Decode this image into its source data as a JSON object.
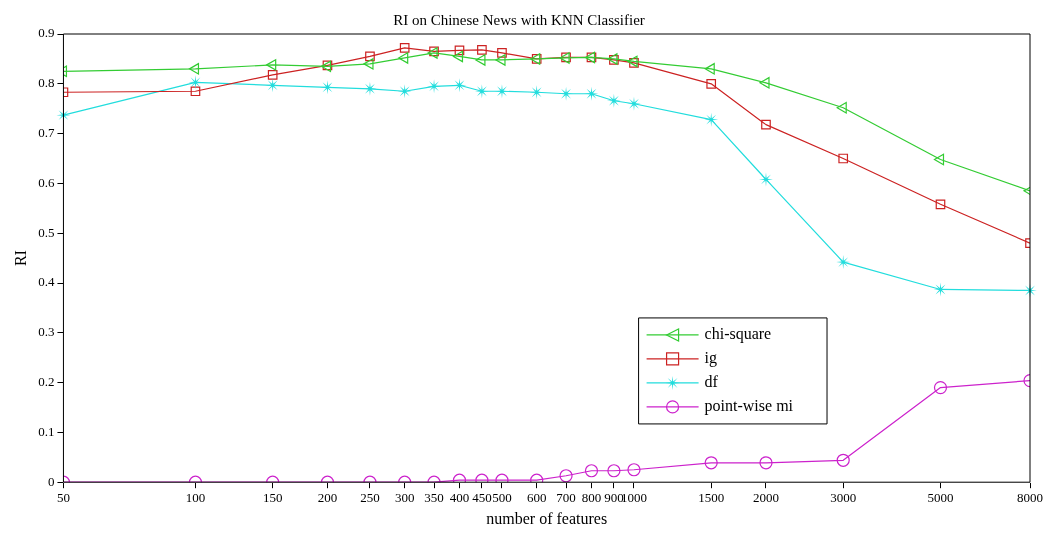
{
  "chart_data": {
    "type": "line",
    "title": "RI on Chinese News with KNN Classifier",
    "xlabel": "number of features",
    "ylabel": "RI",
    "x": [
      50,
      100,
      150,
      200,
      250,
      300,
      350,
      400,
      450,
      500,
      600,
      700,
      800,
      900,
      1000,
      1500,
      2000,
      3000,
      5000,
      8000
    ],
    "log": "x",
    "xlim": [
      50,
      8000
    ],
    "xticks": [
      50,
      100,
      150,
      200,
      250,
      300,
      350,
      400,
      450,
      500,
      600,
      700,
      800,
      900,
      1000,
      1500,
      2000,
      3000,
      5000,
      8000
    ],
    "ylim": [
      0,
      0.9
    ],
    "yticks": [
      0,
      0.1,
      0.2,
      0.3,
      0.4,
      0.5,
      0.6,
      0.7,
      0.8,
      0.9
    ],
    "grid": false,
    "legend": "bottom right",
    "line_style": "solid",
    "series": [
      {
        "name": "chi-square",
        "color": "#33cc33",
        "marker": "triangle",
        "values": [
          0.825,
          0.83,
          0.838,
          0.835,
          0.84,
          0.852,
          0.862,
          0.855,
          0.848,
          0.848,
          0.85,
          0.852,
          0.853,
          0.85,
          0.845,
          0.83,
          0.802,
          0.752,
          0.648,
          0.585
        ]
      },
      {
        "name": "ig",
        "color": "#cc2222",
        "marker": "square",
        "values": [
          0.783,
          0.785,
          0.818,
          0.837,
          0.855,
          0.872,
          0.865,
          0.867,
          0.868,
          0.862,
          0.85,
          0.853,
          0.853,
          0.848,
          0.842,
          0.8,
          0.718,
          0.65,
          0.558,
          0.48
        ]
      },
      {
        "name": "df",
        "color": "#22dddd",
        "marker": "star",
        "values": [
          0.737,
          0.803,
          0.797,
          0.793,
          0.79,
          0.785,
          0.795,
          0.797,
          0.785,
          0.785,
          0.783,
          0.78,
          0.78,
          0.766,
          0.76,
          0.728,
          0.608,
          0.442,
          0.387,
          0.385
        ]
      },
      {
        "name": "point-wise mi",
        "color": "#cc22cc",
        "marker": "circle",
        "values": [
          0,
          0,
          0,
          0,
          0,
          0,
          0,
          0.004,
          0.004,
          0.004,
          0.004,
          0.013,
          0.023,
          0.023,
          0.025,
          0.039,
          0.039,
          0.044,
          0.19,
          0.204
        ]
      }
    ]
  }
}
